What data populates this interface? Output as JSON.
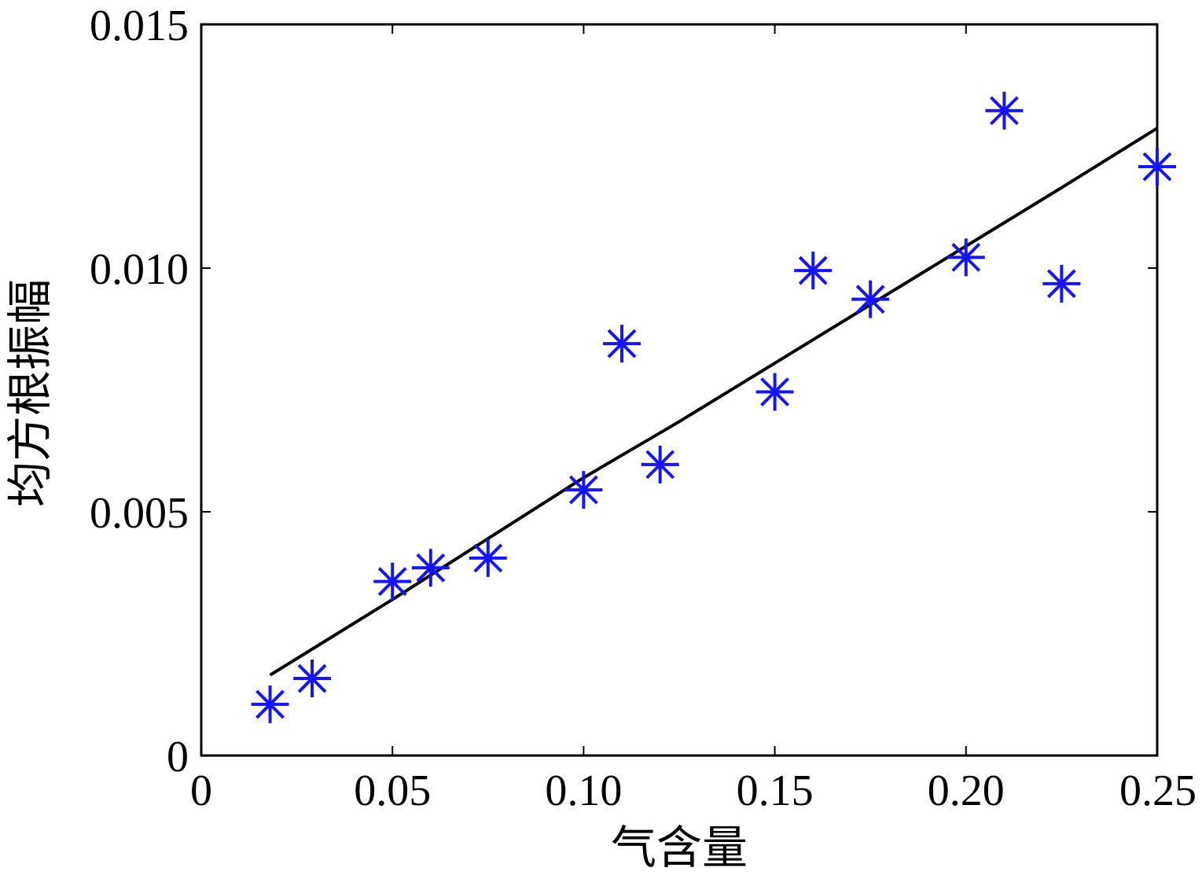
{
  "chart_data": {
    "type": "scatter",
    "title": "",
    "xlabel": "气含量",
    "ylabel": "均方根振幅",
    "xlim": [
      0,
      0.25
    ],
    "ylim": [
      0,
      0.015
    ],
    "grid": false,
    "x_ticks": [
      {
        "value": 0,
        "label": "0"
      },
      {
        "value": 0.05,
        "label": "0.05"
      },
      {
        "value": 0.1,
        "label": "0.10"
      },
      {
        "value": 0.15,
        "label": "0.15"
      },
      {
        "value": 0.2,
        "label": "0.20"
      },
      {
        "value": 0.25,
        "label": "0.25"
      }
    ],
    "y_ticks": [
      {
        "value": 0,
        "label": "0"
      },
      {
        "value": 0.005,
        "label": "0.005"
      },
      {
        "value": 0.01,
        "label": "0.010"
      },
      {
        "value": 0.015,
        "label": "0.015"
      }
    ],
    "series": [
      {
        "kind": "scatter",
        "marker": "asterisk",
        "color": "#1414ff",
        "points": [
          {
            "x": 0.018,
            "y": 0.00105
          },
          {
            "x": 0.029,
            "y": 0.00158
          },
          {
            "x": 0.05,
            "y": 0.00357
          },
          {
            "x": 0.06,
            "y": 0.00385
          },
          {
            "x": 0.075,
            "y": 0.00405
          },
          {
            "x": 0.1,
            "y": 0.00545
          },
          {
            "x": 0.11,
            "y": 0.00845
          },
          {
            "x": 0.12,
            "y": 0.00597
          },
          {
            "x": 0.15,
            "y": 0.00746
          },
          {
            "x": 0.16,
            "y": 0.00995
          },
          {
            "x": 0.175,
            "y": 0.00936
          },
          {
            "x": 0.2,
            "y": 0.01022
          },
          {
            "x": 0.21,
            "y": 0.01323
          },
          {
            "x": 0.225,
            "y": 0.00968
          },
          {
            "x": 0.25,
            "y": 0.01208
          }
        ]
      },
      {
        "kind": "line",
        "color": "#000000",
        "points": [
          {
            "x": 0.018,
            "y": 0.00165
          },
          {
            "x": 0.05,
            "y": 0.0032
          },
          {
            "x": 0.075,
            "y": 0.00445
          },
          {
            "x": 0.1,
            "y": 0.0057
          },
          {
            "x": 0.125,
            "y": 0.00685
          },
          {
            "x": 0.15,
            "y": 0.00805
          },
          {
            "x": 0.175,
            "y": 0.00925
          },
          {
            "x": 0.2,
            "y": 0.01045
          },
          {
            "x": 0.225,
            "y": 0.01165
          },
          {
            "x": 0.25,
            "y": 0.01287
          }
        ]
      }
    ]
  }
}
